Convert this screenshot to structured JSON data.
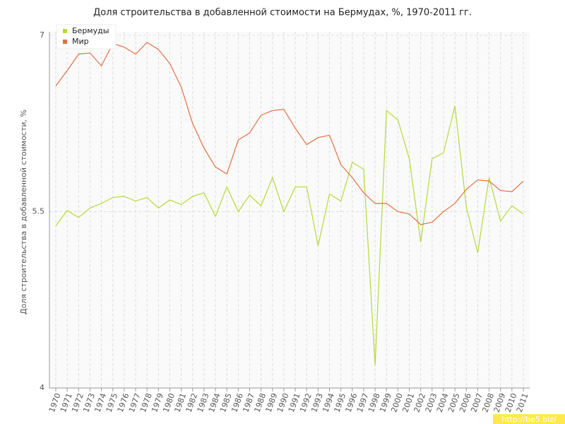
{
  "chart_data": {
    "type": "line",
    "title": "Доля строительства в добавленной стоимости на Бермудах, %, 1970-2011 гг.",
    "y_label": "Доля строительства в добавленной стоимости, %",
    "watermark": "http://be5.biz/",
    "categories": [
      "1970",
      "1971",
      "1972",
      "1973",
      "1974",
      "1975",
      "1976",
      "1977",
      "1978",
      "1979",
      "1980",
      "1981",
      "1982",
      "1983",
      "1984",
      "1985",
      "1986",
      "1987",
      "1988",
      "1989",
      "1990",
      "1991",
      "1992",
      "1993",
      "1994",
      "1995",
      "1996",
      "1997",
      "1998",
      "1999",
      "2000",
      "2001",
      "2002",
      "2003",
      "2004",
      "2005",
      "2006",
      "2007",
      "2008",
      "2009",
      "2010",
      "2011"
    ],
    "series": [
      {
        "name": "Бермуды",
        "color": "#b5d93a",
        "values": [
          5.38,
          5.51,
          5.45,
          5.53,
          5.57,
          5.62,
          5.63,
          5.59,
          5.62,
          5.53,
          5.6,
          5.56,
          5.63,
          5.66,
          5.46,
          5.71,
          5.5,
          5.64,
          5.55,
          5.79,
          5.5,
          5.71,
          5.71,
          5.21,
          5.65,
          5.59,
          5.92,
          5.86,
          4.19,
          6.36,
          6.28,
          5.95,
          5.24,
          5.95,
          6.0,
          6.4,
          5.54,
          5.15,
          5.79,
          5.42,
          5.55,
          5.48
        ]
      },
      {
        "name": "Мир",
        "color": "#e07040",
        "values": [
          6.57,
          6.7,
          6.84,
          6.85,
          6.74,
          6.93,
          6.9,
          6.84,
          6.94,
          6.88,
          6.76,
          6.56,
          6.25,
          6.04,
          5.88,
          5.82,
          6.11,
          6.17,
          6.32,
          6.36,
          6.37,
          6.21,
          6.07,
          6.13,
          6.15,
          5.9,
          5.79,
          5.66,
          5.57,
          5.57,
          5.5,
          5.48,
          5.39,
          5.41,
          5.5,
          5.57,
          5.69,
          5.77,
          5.76,
          5.68,
          5.67,
          5.76
        ]
      }
    ],
    "ylim": [
      4,
      7
    ],
    "yticks": [
      4,
      5.5,
      7
    ],
    "grid": true,
    "legend": "top-left"
  }
}
